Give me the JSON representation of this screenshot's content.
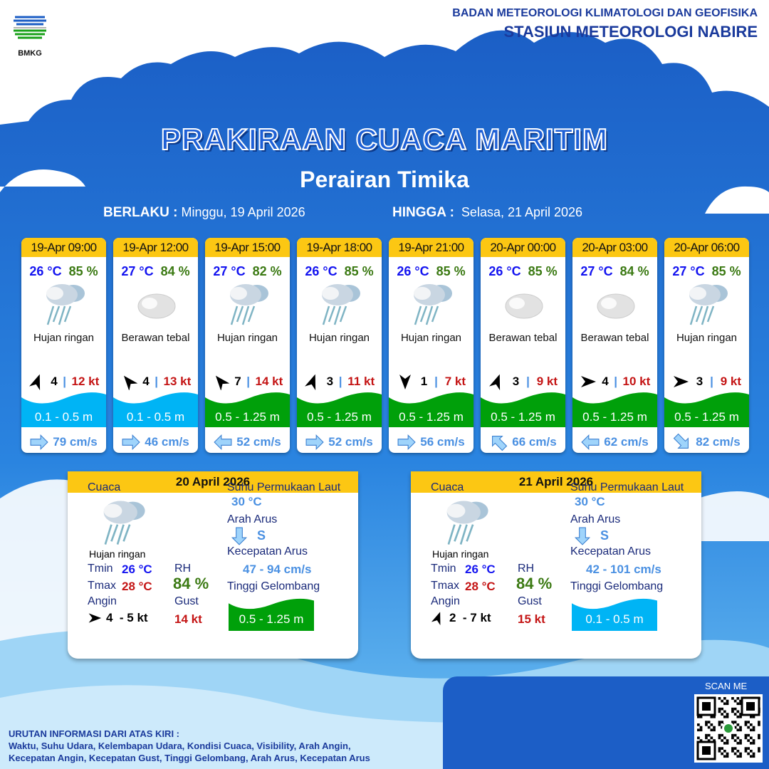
{
  "header": {
    "agency": "BADAN METEOROLOGI KLIMATOLOGI DAN GEOFISIKA",
    "station": "STASIUN METEOROLOGI NABIRE",
    "logo_text": "BMKG"
  },
  "title": "PRAKIRAAN CUACA MARITIM",
  "subtitle": "Perairan Timika",
  "validity": {
    "from_label": "BERLAKU :",
    "from": "Minggu, 19 April 2026",
    "to_label": "HINGGA :",
    "to": "Selasa, 21 April 2026"
  },
  "colors": {
    "accent_yellow": "#fcc713",
    "wave_low": "#00b4f5",
    "wave_mid": "#00a00a",
    "bg_blue": "#1e6fd0"
  },
  "forecasts": [
    {
      "time": "19-Apr 09:00",
      "temp": "26 °C",
      "rh": "85 %",
      "icon": "light-rain",
      "weather": "Hujan ringan",
      "wind_dir_deg": 20,
      "wind": "4",
      "gust": "12 kt",
      "wave": "0.1 - 0.5 m",
      "wave_class": "low",
      "current_dir_deg": 0,
      "current": "79 cm/s"
    },
    {
      "time": "19-Apr 12:00",
      "temp": "27 °C",
      "rh": "84 %",
      "icon": "overcast",
      "weather": "Berawan tebal",
      "wind_dir_deg": -40,
      "wind": "4",
      "gust": "13 kt",
      "wave": "0.1 - 0.5 m",
      "wave_class": "low",
      "current_dir_deg": 0,
      "current": "46 cm/s"
    },
    {
      "time": "19-Apr 15:00",
      "temp": "27 °C",
      "rh": "82 %",
      "icon": "light-rain",
      "weather": "Hujan ringan",
      "wind_dir_deg": -40,
      "wind": "7",
      "gust": "14 kt",
      "wave": "0.5 - 1.25 m",
      "wave_class": "mid",
      "current_dir_deg": 180,
      "current": "52 cm/s"
    },
    {
      "time": "19-Apr 18:00",
      "temp": "26 °C",
      "rh": "85 %",
      "icon": "light-rain",
      "weather": "Hujan ringan",
      "wind_dir_deg": 20,
      "wind": "3",
      "gust": "11 kt",
      "wave": "0.5 - 1.25 m",
      "wave_class": "mid",
      "current_dir_deg": 0,
      "current": "52 cm/s"
    },
    {
      "time": "19-Apr 21:00",
      "temp": "26 °C",
      "rh": "85 %",
      "icon": "light-rain",
      "weather": "Hujan ringan",
      "wind_dir_deg": 180,
      "wind": "1",
      "gust": "7 kt",
      "wave": "0.5 - 1.25 m",
      "wave_class": "mid",
      "current_dir_deg": 0,
      "current": "56 cm/s"
    },
    {
      "time": "20-Apr 00:00",
      "temp": "26 °C",
      "rh": "85 %",
      "icon": "overcast",
      "weather": "Berawan tebal",
      "wind_dir_deg": 20,
      "wind": "3",
      "gust": "9 kt",
      "wave": "0.5 - 1.25 m",
      "wave_class": "mid",
      "current_dir_deg": -135,
      "current": "66 cm/s"
    },
    {
      "time": "20-Apr 03:00",
      "temp": "27 °C",
      "rh": "84 %",
      "icon": "overcast",
      "weather": "Berawan tebal",
      "wind_dir_deg": 90,
      "wind": "4",
      "gust": "10 kt",
      "wave": "0.5 - 1.25 m",
      "wave_class": "mid",
      "current_dir_deg": 180,
      "current": "62 cm/s"
    },
    {
      "time": "20-Apr 06:00",
      "temp": "27 °C",
      "rh": "85 %",
      "icon": "light-rain",
      "weather": "Hujan ringan",
      "wind_dir_deg": 90,
      "wind": "3",
      "gust": "9 kt",
      "wave": "0.5 - 1.25 m",
      "wave_class": "mid",
      "current_dir_deg": 45,
      "current": "82 cm/s"
    }
  ],
  "daily": [
    {
      "date": "20 April 2026",
      "weather_label": "Cuaca",
      "icon": "light-rain",
      "weather": "Hujan ringan",
      "tmin_label": "Tmin",
      "tmin": "26 °C",
      "tmax_label": "Tmax",
      "tmax": "28 °C",
      "rh_label": "RH",
      "rh": "84 %",
      "wind_label": "Angin",
      "wind_dir_deg": 90,
      "wind": "4  - 5 kt",
      "gust_label": "Gust",
      "gust": "14 kt",
      "sst_label": "Suhu Permukaan Laut",
      "sst": "30 °C",
      "current_dir_label": "Arah Arus",
      "current_dir": "S",
      "current_speed_label": "Kecepatan Arus",
      "current_speed": "47 - 94 cm/s",
      "wave_label": "Tinggi Gelombang",
      "wave": "0.5 - 1.25 m",
      "wave_class": "mid"
    },
    {
      "date": "21 April 2026",
      "weather_label": "Cuaca",
      "icon": "light-rain",
      "weather": "Hujan ringan",
      "tmin_label": "Tmin",
      "tmin": "26 °C",
      "tmax_label": "Tmax",
      "tmax": "28 °C",
      "rh_label": "RH",
      "rh": "84 %",
      "wind_label": "Angin",
      "wind_dir_deg": 20,
      "wind": "2  - 7 kt",
      "gust_label": "Gust",
      "gust": "15 kt",
      "sst_label": "Suhu Permukaan Laut",
      "sst": "30 °C",
      "current_dir_label": "Arah Arus",
      "current_dir": "S",
      "current_speed_label": "Kecepatan Arus",
      "current_speed": "42 - 101 cm/s",
      "wave_label": "Tinggi Gelombang",
      "wave": "0.1 - 0.5 m",
      "wave_class": "low"
    }
  ],
  "footer": {
    "line1": "URUTAN INFORMASI DARI ATAS KIRI :",
    "line2": "Waktu, Suhu Udara, Kelembapan Udara, Kondisi Cuaca, Visibility, Arah Angin,",
    "line3": "Kecepatan Angin, Kecepatan Gust, Tinggi Gelombang, Arah Arus, Kecepatan Arus"
  },
  "qr": {
    "label": "SCAN ME"
  }
}
